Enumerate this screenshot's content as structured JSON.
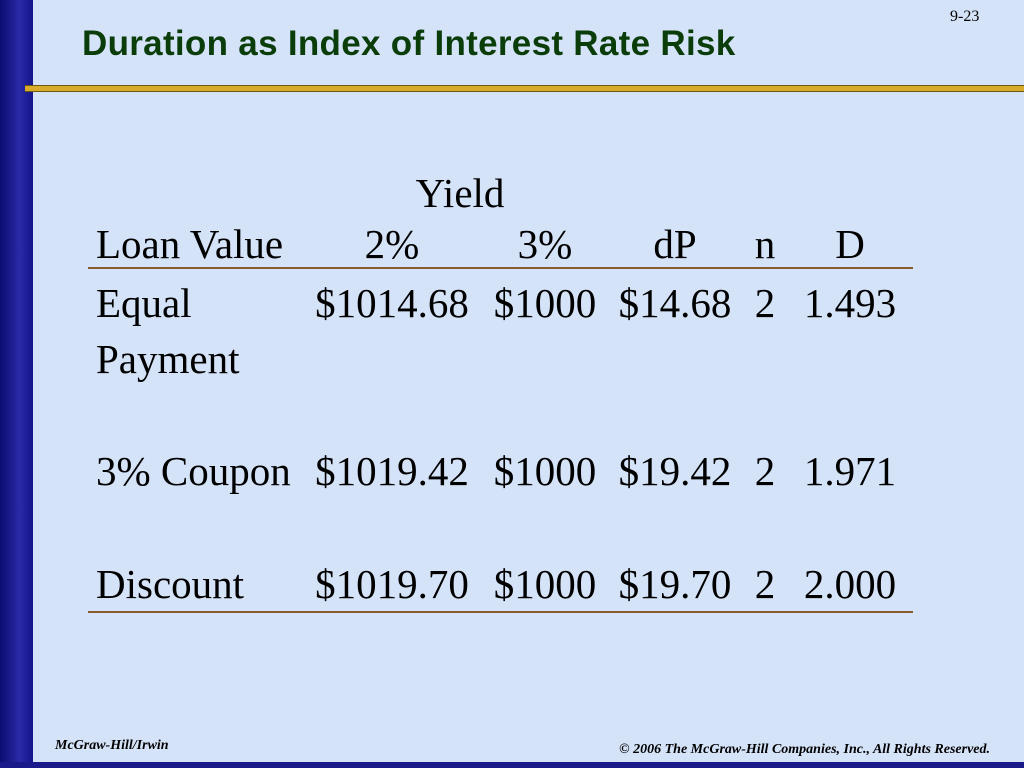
{
  "slide_number": "9-23",
  "title": "Duration as Index of Interest Rate Risk",
  "table": {
    "group_header": "Yield",
    "headers": [
      "Loan Value",
      "2%",
      "3%",
      "dP",
      "n",
      "D"
    ],
    "rows": [
      [
        "Equal Payment",
        "$1014.68",
        "$1000",
        "$14.68",
        "2",
        "1.493"
      ],
      [
        "3% Coupon",
        "$1019.42",
        "$1000",
        "$19.42",
        "2",
        "1.971"
      ],
      [
        "Discount",
        "$1019.70",
        "$1000",
        "$19.70",
        "2",
        "2.000"
      ]
    ]
  },
  "footer": {
    "left": "McGraw-Hill/Irwin",
    "right": "© 2006 The McGraw-Hill Companies, Inc., All Rights Reserved."
  }
}
